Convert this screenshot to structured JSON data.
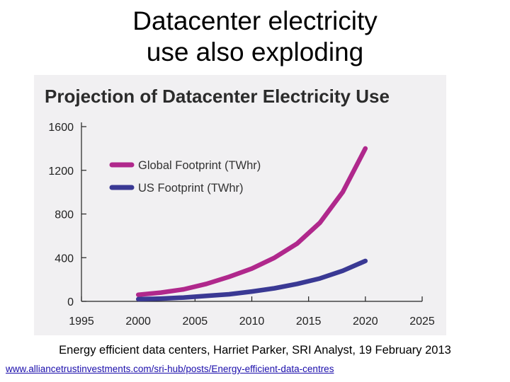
{
  "slide": {
    "title_line1": "Datacenter electricity",
    "title_line2": "use also exploding",
    "caption": "Energy efficient data centers, Harriet Parker, SRI Analyst, 19 February 2013",
    "link": "www.alliancetrustinvestments.com/sri-hub/posts/Energy-efficient-data-centres"
  },
  "chart_data": {
    "type": "line",
    "title": "Projection of Datacenter Electricity Use",
    "xlabel": "",
    "ylabel": "",
    "xlim": [
      1995,
      2025
    ],
    "ylim": [
      0,
      1600
    ],
    "x_ticks": [
      "1995",
      "2000",
      "2005",
      "2010",
      "2015",
      "2020",
      "2025"
    ],
    "y_ticks": [
      "0",
      "400",
      "800",
      "1200",
      "1600"
    ],
    "grid": false,
    "legend_position": "upper-left",
    "series": [
      {
        "name": "Global Footprint (TWhr)",
        "color": "#b0288c",
        "x": [
          2000,
          2002,
          2004,
          2006,
          2008,
          2010,
          2012,
          2014,
          2016,
          2018,
          2020
        ],
        "y": [
          60,
          80,
          110,
          160,
          225,
          300,
          400,
          530,
          720,
          1000,
          1400
        ]
      },
      {
        "name": "US Footprint (TWhr)",
        "color": "#3a3994",
        "x": [
          2000,
          2002,
          2004,
          2006,
          2008,
          2010,
          2012,
          2014,
          2016,
          2018,
          2020
        ],
        "y": [
          20,
          25,
          35,
          50,
          65,
          90,
          120,
          160,
          210,
          280,
          370
        ]
      }
    ]
  }
}
